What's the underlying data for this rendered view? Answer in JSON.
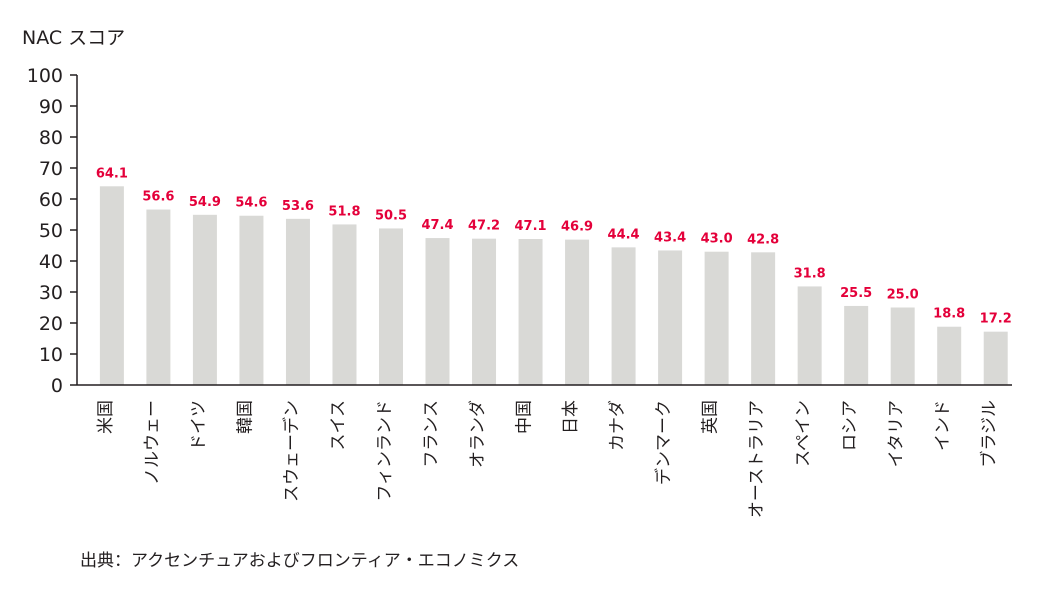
{
  "chart_data": {
    "type": "bar",
    "ylabel": "NAC スコア",
    "ylim": [
      0,
      100
    ],
    "yticks": [
      "0",
      "10",
      "20",
      "30",
      "40",
      "50",
      "60",
      "70",
      "80",
      "90",
      "100"
    ],
    "categories": [
      "米国",
      "ノルウェー",
      "ドイツ",
      "韓国",
      "スウェーデン",
      "スイス",
      "フィンランド",
      "フランス",
      "オランダ",
      "中国",
      "日本",
      "カナダ",
      "デンマーク",
      "英国",
      "オーストラリア",
      "スペイン",
      "ロシア",
      "イタリア",
      "インド",
      "ブラジル"
    ],
    "values": [
      64.1,
      56.6,
      54.9,
      54.6,
      53.6,
      51.8,
      50.5,
      47.4,
      47.2,
      47.1,
      46.9,
      44.4,
      43.4,
      43.0,
      42.8,
      31.8,
      25.5,
      25.0,
      18.8,
      17.2
    ],
    "value_labels": [
      "64.1",
      "56.6",
      "54.9",
      "54.6",
      "53.6",
      "51.8",
      "50.5",
      "47.4",
      "47.2",
      "47.1",
      "46.9",
      "44.4",
      "43.4",
      "43.0",
      "42.8",
      "31.8",
      "25.5",
      "25.0",
      "18.8",
      "17.2"
    ],
    "grid": false,
    "legend": "none",
    "source": "出典：アクセンチュアおよびフロンティア・エコノミクス",
    "colors": {
      "bar": "#d9d9d6",
      "value_label": "#e4003a",
      "axis": "#231f20",
      "text": "#231f20"
    }
  }
}
